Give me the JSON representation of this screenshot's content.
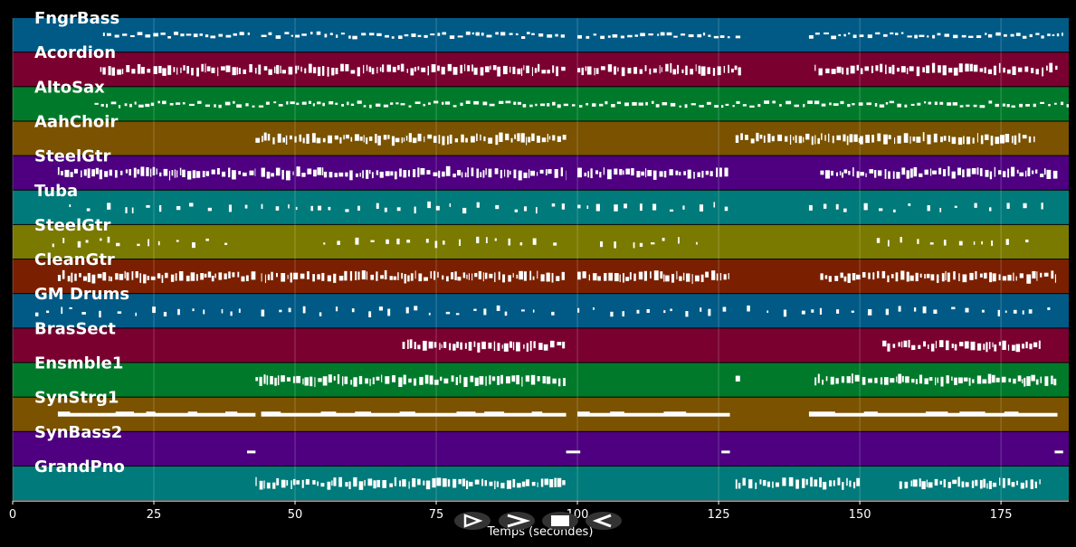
{
  "chart_data": {
    "type": "piano-roll",
    "xlabel": "Temps (secondes)",
    "xlim": [
      0,
      187
    ],
    "x_ticks": [
      0,
      25,
      50,
      75,
      100,
      125,
      150,
      175
    ],
    "grid": true,
    "tracks": [
      {
        "name": "FngrBass",
        "color": "#005a85",
        "note_style": "dashed",
        "segments": [
          [
            16,
            42
          ],
          [
            44,
            98
          ],
          [
            100,
            127
          ],
          [
            128,
            129
          ],
          [
            141,
            186
          ]
        ]
      },
      {
        "name": "Acordion",
        "color": "#7a0030",
        "note_style": "dense",
        "segments": [
          [
            15.5,
            44
          ],
          [
            44.5,
            98
          ],
          [
            100,
            129
          ],
          [
            142,
            185
          ]
        ]
      },
      {
        "name": "AltoSax",
        "color": "#007a2a",
        "note_style": "dashed",
        "segments": [
          [
            14.5,
            187
          ]
        ]
      },
      {
        "name": "AahChoir",
        "color": "#7a5200",
        "note_style": "dense",
        "segments": [
          [
            43,
            98
          ],
          [
            128,
            150
          ],
          [
            150,
            181
          ]
        ]
      },
      {
        "name": "SteelGtr",
        "color": "#4e0080",
        "note_style": "dense",
        "segments": [
          [
            8,
            43
          ],
          [
            44,
            98
          ],
          [
            100,
            127
          ],
          [
            143,
            185
          ]
        ]
      },
      {
        "name": "Tuba",
        "color": "#007a7a",
        "note_style": "sparse",
        "segments": [
          [
            10,
            42
          ],
          [
            44,
            98
          ],
          [
            100,
            127
          ],
          [
            141,
            184
          ]
        ]
      },
      {
        "name": "SteelGtr",
        "color": "#7a7a00",
        "note_style": "sparse",
        "segments": [
          [
            7,
            38
          ],
          [
            55,
            98
          ],
          [
            104,
            122
          ],
          [
            153,
            180
          ]
        ]
      },
      {
        "name": "CleanGtr",
        "color": "#7a2000",
        "note_style": "dense",
        "segments": [
          [
            8,
            43
          ],
          [
            44,
            98
          ],
          [
            100,
            127
          ],
          [
            143,
            185
          ]
        ]
      },
      {
        "name": "GM Drums",
        "color": "#005a85",
        "note_style": "sparse",
        "segments": [
          [
            4,
            42
          ],
          [
            44,
            98
          ],
          [
            100,
            127
          ],
          [
            130,
            184
          ]
        ]
      },
      {
        "name": "BrasSect",
        "color": "#7a0030",
        "note_style": "dense",
        "segments": [
          [
            69,
            98
          ],
          [
            154,
            182
          ]
        ]
      },
      {
        "name": "Ensmble1",
        "color": "#007a2a",
        "note_style": "dense",
        "segments": [
          [
            43,
            98
          ],
          [
            128,
            129
          ],
          [
            142,
            185
          ]
        ]
      },
      {
        "name": "SynStrg1",
        "color": "#7a5200",
        "note_style": "long",
        "segments": [
          [
            8,
            43
          ],
          [
            44,
            98
          ],
          [
            100,
            127
          ],
          [
            141,
            185
          ]
        ]
      },
      {
        "name": "SynBass2",
        "color": "#4e0080",
        "note_style": "single",
        "segments": [
          [
            41.5,
            43
          ],
          [
            98,
            100.5
          ],
          [
            125.5,
            127
          ],
          [
            184.5,
            186
          ]
        ]
      },
      {
        "name": "GrandPno",
        "color": "#007a7a",
        "note_style": "dense",
        "segments": [
          [
            43,
            98
          ],
          [
            128,
            150
          ],
          [
            157,
            182
          ]
        ]
      }
    ]
  },
  "controls": [
    {
      "name": "play-button",
      "icon": "play-icon"
    },
    {
      "name": "fast-forward-button",
      "icon": "fast-forward-icon"
    },
    {
      "name": "stop-button",
      "icon": "stop-icon"
    },
    {
      "name": "rewind-button",
      "icon": "rewind-icon"
    }
  ]
}
